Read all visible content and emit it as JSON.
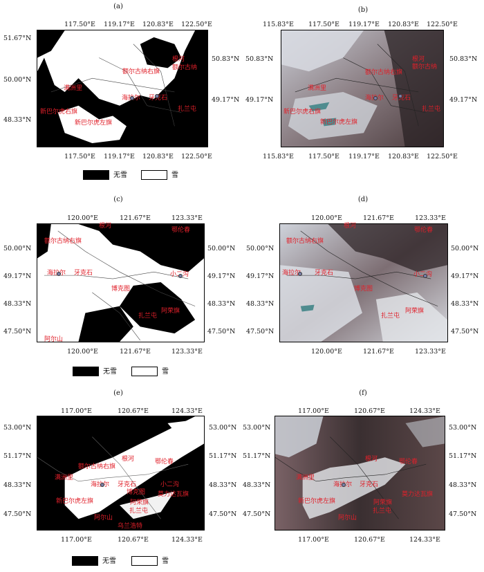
{
  "panels": [
    {
      "label": "(a)",
      "kind": "binary",
      "top_ticks": [
        "117.50°E",
        "119.17°E",
        "120.83°E",
        "122.50°E"
      ],
      "bottom_ticks": [
        "117.50°E",
        "119.17°E",
        "120.83°E",
        "122.50°E"
      ],
      "left_ticks": [
        "51.67°N",
        "50.00°N",
        "48.33°N"
      ],
      "right_ticks": [
        "50.83°N",
        "49.17°N"
      ],
      "places": [
        "根河",
        "额尔古纳",
        "额尔古纳右旗",
        "海拉尔",
        "牙克石",
        "满洲里",
        "新巴尔虎右旗",
        "新巴尔虎左旗",
        "扎兰屯"
      ]
    },
    {
      "label": "(b)",
      "kind": "satellite",
      "top_ticks": [
        "115.83°E",
        "117.50°E",
        "119.17°E",
        "120.83°E",
        "122.50°E"
      ],
      "bottom_ticks": [
        "115.83°E",
        "117.50°E",
        "119.17°E",
        "120.83°E",
        "122.50°E"
      ],
      "left_ticks": [
        "50.83°N",
        "49.17°N"
      ],
      "right_ticks": [
        "50.83°N",
        "49.17°N"
      ],
      "places": [
        "根河",
        "额尔古纳",
        "额尔古纳右旗",
        "海拉尔",
        "牙克石",
        "满洲里",
        "新巴尔虎右旗",
        "新巴尔虎左旗",
        "扎兰屯"
      ]
    },
    {
      "label": "(c)",
      "kind": "binary",
      "top_ticks": [
        "120.00°E",
        "121.67°E",
        "123.33°E"
      ],
      "bottom_ticks": [
        "120.00°E",
        "121.67°E",
        "123.33°E"
      ],
      "left_ticks": [
        "50.00°N",
        "49.17°N",
        "48.33°N",
        "47.50°N"
      ],
      "right_ticks": [
        "50.00°N",
        "49.17°N",
        "48.33°N",
        "47.50°N"
      ],
      "places": [
        "根河",
        "额尔古纳右旗",
        "海拉尔",
        "牙克石",
        "鄂伦春",
        "小二沟",
        "博克图",
        "阿荣旗",
        "扎兰屯",
        "阿尔山"
      ]
    },
    {
      "label": "(d)",
      "kind": "satellite",
      "top_ticks": [
        "120.00°E",
        "121.67°E",
        "123.33°E"
      ],
      "bottom_ticks": [
        "120.00°E",
        "121.67°E",
        "123.33°E"
      ],
      "left_ticks": [
        "50.00°N",
        "49.17°N",
        "48.33°N",
        "47.50°N"
      ],
      "right_ticks": [
        "50.00°N",
        "49.17°N",
        "48.33°N",
        "47.50°N"
      ],
      "places": [
        "根河",
        "额尔古纳右旗",
        "海拉尔",
        "牙克石",
        "鄂伦春",
        "小二沟",
        "博克图",
        "阿荣旗",
        "扎兰屯"
      ]
    },
    {
      "label": "(e)",
      "kind": "binary",
      "top_ticks": [
        "117.00°E",
        "120.67°E",
        "124.33°E"
      ],
      "bottom_ticks": [
        "117.00°E",
        "120.67°E",
        "124.33°E"
      ],
      "left_ticks": [
        "53.00°N",
        "51.17°N",
        "48.33°N",
        "47.50°N"
      ],
      "right_ticks": [
        "53.00°N",
        "51.17°N",
        "48.33°N",
        "47.50°N"
      ],
      "places": [
        "根河",
        "鄂伦春",
        "额尔古纳右旗",
        "满洲里",
        "海拉尔",
        "牙克石",
        "博克图",
        "小二沟",
        "莫力达瓦旗",
        "新巴尔虎左旗",
        "阿荣旗",
        "扎兰屯",
        "阿尔山",
        "乌兰浩特"
      ]
    },
    {
      "label": "(f)",
      "kind": "satellite",
      "top_ticks": [
        "117.00°E",
        "120.67°E",
        "124.33°E"
      ],
      "bottom_ticks": [
        "117.00°E",
        "120.67°E",
        "124.33°E"
      ],
      "left_ticks": [
        "53.00°N",
        "51.17°N",
        "48.33°N",
        "47.50°N"
      ],
      "right_ticks": [
        "53.00°N",
        "51.17°N",
        "48.33°N",
        "47.50°N"
      ],
      "places": [
        "根河",
        "鄂伦春",
        "满洲里",
        "海拉尔",
        "牙克石",
        "莫力达瓦旗",
        "新巴尔虎左旗",
        "阿荣旗",
        "扎兰屯",
        "阿尔山"
      ]
    }
  ],
  "legend": {
    "no_snow": "无雪",
    "snow": "雪"
  },
  "colors": {
    "no_snow": "#000000",
    "snow": "#ffffff",
    "place_label": "#e0202a"
  }
}
